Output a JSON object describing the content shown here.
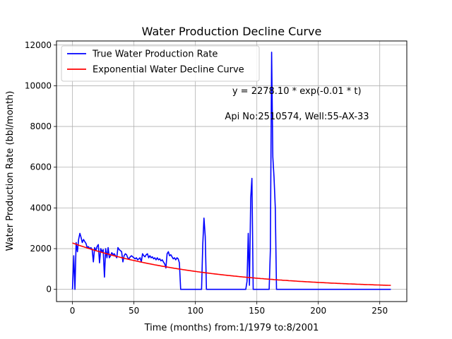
{
  "chart_data": {
    "type": "line",
    "title": "Water Production Decline Curve",
    "xlabel": "Time (months) from:1/1979 to:8/2001",
    "ylabel": "Water Production Rate (bbl/month)",
    "xlim": [
      -13,
      272
    ],
    "ylim": [
      -600,
      12200
    ],
    "xticks": [
      0,
      50,
      100,
      150,
      200,
      250
    ],
    "yticks": [
      0,
      2000,
      4000,
      6000,
      8000,
      10000,
      12000
    ],
    "grid": true,
    "legend_position": "top-left",
    "annotations": [
      {
        "text": "y = 2278.10 * exp(-0.01 * t)",
        "x": 130,
        "y": 9600
      },
      {
        "text": "Api No:2510574, Well:55-AX-33",
        "x": 124,
        "y": 8350
      }
    ],
    "series": [
      {
        "name": "True Water Production Rate",
        "color": "#0000ff",
        "x": [
          0,
          1,
          2,
          3,
          4,
          5,
          6,
          7,
          8,
          9,
          10,
          11,
          12,
          13,
          14,
          15,
          16,
          17,
          18,
          19,
          20,
          21,
          22,
          23,
          24,
          25,
          26,
          27,
          28,
          29,
          30,
          31,
          32,
          33,
          34,
          35,
          36,
          37,
          38,
          39,
          40,
          41,
          42,
          43,
          44,
          45,
          46,
          47,
          48,
          49,
          50,
          51,
          52,
          53,
          54,
          55,
          56,
          57,
          58,
          59,
          60,
          61,
          62,
          63,
          64,
          65,
          66,
          67,
          68,
          69,
          70,
          71,
          72,
          73,
          74,
          75,
          76,
          77,
          78,
          79,
          80,
          81,
          82,
          83,
          84,
          85,
          86,
          87,
          88,
          105,
          106,
          107,
          108,
          109,
          141,
          142,
          143,
          144,
          145,
          146,
          147,
          148,
          160,
          161,
          162,
          163,
          164,
          165,
          166,
          167,
          168,
          259
        ],
        "values": [
          0,
          1650,
          0,
          2300,
          1850,
          2450,
          2750,
          2550,
          2300,
          2450,
          2350,
          2250,
          2050,
          2100,
          2000,
          2050,
          1950,
          1350,
          2050,
          1900,
          2100,
          2200,
          1300,
          2000,
          1850,
          1950,
          600,
          2000,
          1550,
          2050,
          1550,
          1650,
          1800,
          1700,
          1750,
          1650,
          1550,
          2050,
          1950,
          1900,
          1850,
          1350,
          1650,
          1750,
          1700,
          1550,
          1500,
          1600,
          1650,
          1600,
          1550,
          1500,
          1550,
          1450,
          1500,
          1550,
          1350,
          1750,
          1650,
          1600,
          1700,
          1750,
          1550,
          1650,
          1550,
          1600,
          1500,
          1550,
          1450,
          1550,
          1450,
          1500,
          1400,
          1450,
          1350,
          1250,
          1050,
          1750,
          1850,
          1650,
          1700,
          1600,
          1500,
          1550,
          1450,
          1550,
          1500,
          1300,
          0,
          0,
          2200,
          3500,
          2600,
          0,
          0,
          400,
          2750,
          200,
          4500,
          5450,
          0,
          0,
          0,
          1900,
          11650,
          6500,
          5500,
          4000,
          0,
          0,
          0,
          0
        ]
      },
      {
        "name": "Exponential Water Decline Curve",
        "color": "#ff0000",
        "a": 2278.1,
        "b": -0.0095,
        "x_start": 0,
        "x_end": 259
      }
    ]
  }
}
